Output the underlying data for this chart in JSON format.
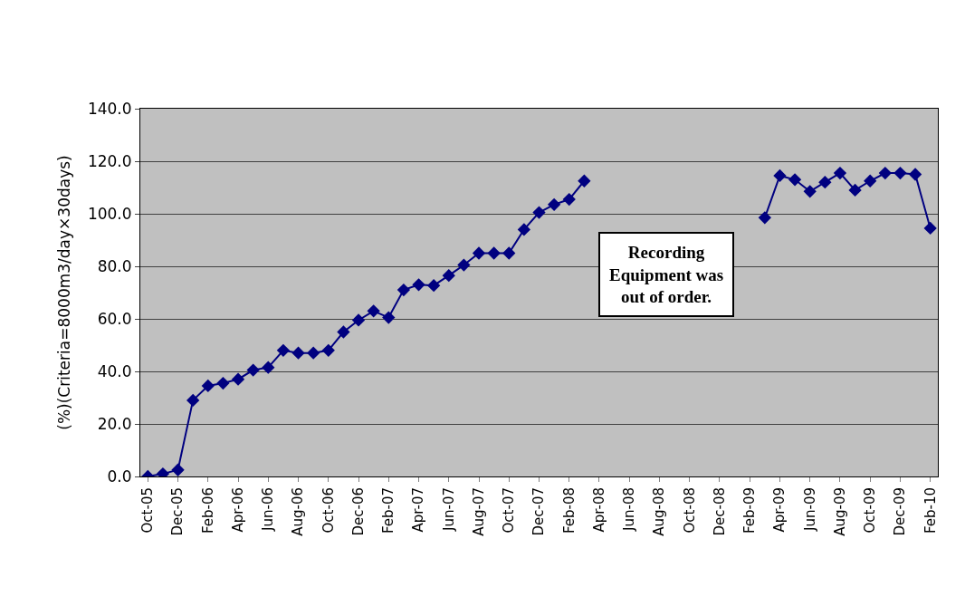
{
  "chart_data": {
    "type": "line",
    "ylabel": "(%)(Criteria=8000m3/day×30days)",
    "annotations": [
      "Recording Equipment was out of order."
    ],
    "categories": [
      "Oct-05",
      null,
      "Dec-05",
      null,
      "Feb-06",
      null,
      "Apr-06",
      null,
      "Jun-06",
      null,
      "Aug-06",
      null,
      "Oct-06",
      null,
      "Dec-06",
      null,
      "Feb-07",
      null,
      "Apr-07",
      null,
      "Jun-07",
      null,
      "Aug-07",
      null,
      "Oct-07",
      null,
      "Dec-07",
      null,
      "Feb-08",
      null,
      "Apr-08",
      null,
      "Jun-08",
      null,
      "Aug-08",
      null,
      "Oct-08",
      null,
      "Dec-08",
      null,
      "Feb-09",
      null,
      "Apr-09",
      null,
      "Jun-09",
      null,
      "Aug-09",
      null,
      "Oct-09",
      null,
      "Dec-09",
      null,
      "Feb-10"
    ],
    "series": [
      {
        "color": "#000080",
        "values": [
          0.0,
          1.0,
          2.5,
          29,
          34.5,
          35.5,
          37,
          40.5,
          41.5,
          48,
          47,
          47,
          48,
          55,
          59.5,
          63,
          60.5,
          71,
          73,
          72.7,
          76.5,
          80.5,
          85,
          85,
          85,
          94,
          100.5,
          103.5,
          105.5,
          112.5,
          null,
          null,
          null,
          null,
          null,
          null,
          null,
          null,
          null,
          null,
          null,
          98.5,
          114.5,
          113,
          108.5,
          112,
          115.5,
          109,
          112.5,
          115.5,
          115.5,
          115,
          94.5
        ]
      }
    ],
    "ylim": [
      0,
      140
    ],
    "yticks": [
      {
        "value": 0,
        "label": "0.0"
      },
      {
        "value": 20,
        "label": "20.0"
      },
      {
        "value": 40,
        "label": "40.0"
      },
      {
        "value": 60,
        "label": "60.0"
      },
      {
        "value": 80,
        "label": "80.0"
      },
      {
        "value": 100,
        "label": "100.0"
      },
      {
        "value": 120,
        "label": "120.0"
      },
      {
        "value": 140,
        "label": "140.0"
      }
    ],
    "grid": "y",
    "marker": "diamond",
    "line_style": "solid"
  }
}
